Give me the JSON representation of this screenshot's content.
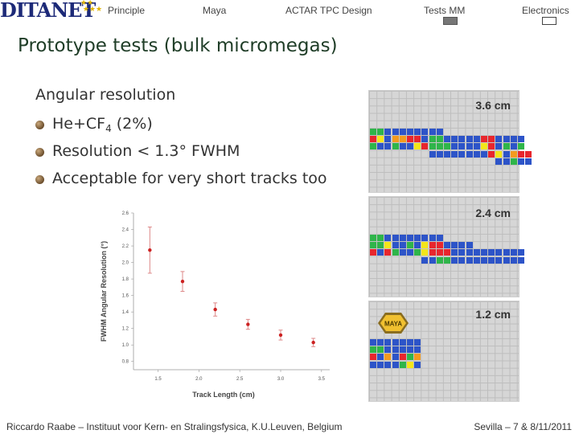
{
  "nav": {
    "logo_text": "DITANET",
    "items": [
      {
        "label": "Principle"
      },
      {
        "label": "Maya"
      },
      {
        "label": "ACTAR TPC Design"
      },
      {
        "label": "Tests MM"
      },
      {
        "label": "Electronics"
      }
    ]
  },
  "slide": {
    "title": "Prototype tests (bulk micromegas)",
    "heading": "Angular resolution",
    "bullets": [
      {
        "text": "He+CF",
        "sub": "4",
        "tail": " (2%)"
      },
      {
        "text": "Resolution  < 1.3° FWHM"
      },
      {
        "text": "Acceptable for very short tracks too"
      }
    ]
  },
  "chart_data": {
    "type": "scatter",
    "xlabel": "Track Length (cm)",
    "ylabel": "FWHM Angular Resolution (°)",
    "xlim": [
      1.2,
      3.6
    ],
    "ylim": [
      0.7,
      2.6
    ],
    "x_ticks": [
      "1.5",
      "2.0",
      "2.5",
      "3.0",
      "3.5"
    ],
    "y_ticks": [
      "0.8",
      "1.0",
      "1.2",
      "1.4",
      "1.6",
      "1.8",
      "2.0",
      "2.2",
      "2.4",
      "2.6"
    ],
    "x": [
      1.4,
      1.8,
      2.2,
      2.6,
      3.0,
      3.4
    ],
    "y": [
      2.15,
      1.77,
      1.43,
      1.25,
      1.12,
      1.03
    ],
    "err": [
      0.28,
      0.12,
      0.08,
      0.06,
      0.06,
      0.05
    ],
    "point_color": "#cc2222"
  },
  "panels": [
    {
      "label": "3.6 cm"
    },
    {
      "label": "2.4 cm"
    },
    {
      "label": "1.2 cm",
      "badge": "MAYA"
    }
  ],
  "colors": {
    "red": "#e8262d",
    "green": "#2fb54a",
    "blue": "#2d54c8",
    "yellow": "#f3e61a",
    "orange": "#f39a1e",
    "title": "#1f3d27"
  },
  "footer": {
    "left": "Riccardo Raabe – Instituut voor Kern- en Stralingsfysica, K.U.Leuven, Belgium",
    "right": "Sevilla – 7 & 8/11/2011"
  }
}
